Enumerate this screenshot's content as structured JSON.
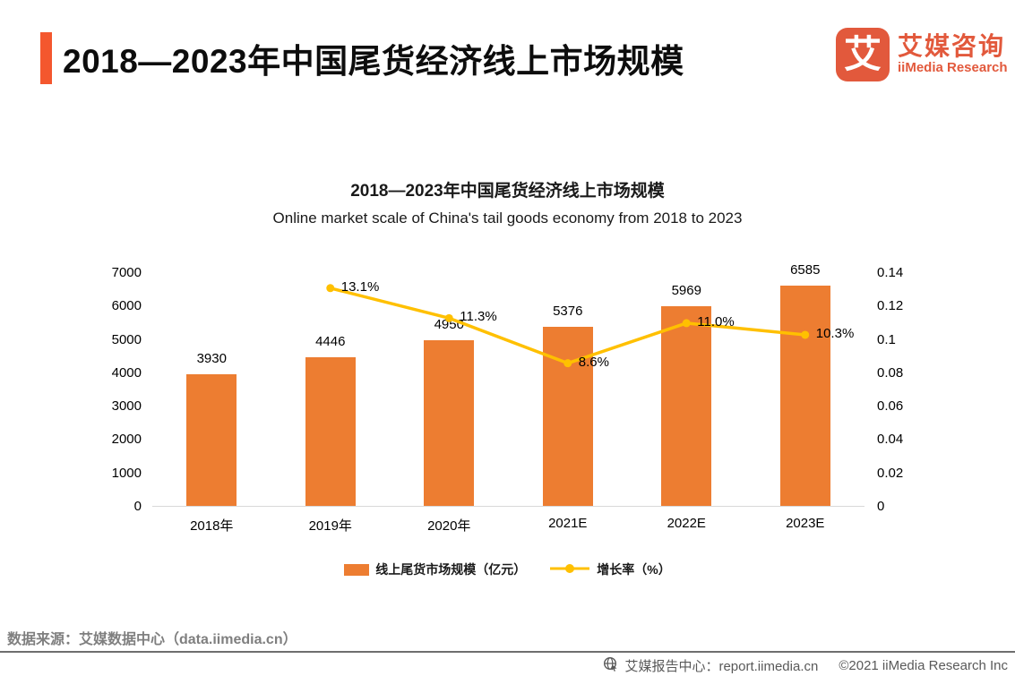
{
  "header": {
    "title": "2018—2023年中国尾货经济线上市场规模",
    "logo": {
      "mark": "艾",
      "name_cn": "艾媒咨询",
      "name_en": "iiMedia Research"
    }
  },
  "source_note": "数据来源：艾媒数据中心（data.iimedia.cn）",
  "footer": {
    "report_center": "艾媒报告中心：report.iimedia.cn",
    "copyright": "©2021  iiMedia Research Inc"
  },
  "colors": {
    "accent_bar": "#F4572E",
    "brand": "#E2593C",
    "bar": "#ED7D31",
    "line": "#FFC000",
    "source_text": "#7f7f7f",
    "footer_text": "#595959"
  },
  "chart_data": {
    "type": "bar",
    "title": "2018—2023年中国尾货经济线上市场规模",
    "subtitle": "Online market scale of China's tail goods economy from 2018 to 2023",
    "categories": [
      "2018年",
      "2019年",
      "2020年",
      "2021E",
      "2022E",
      "2023E"
    ],
    "series": [
      {
        "name": "线上尾货市场规模（亿元）",
        "type": "bar",
        "axis": "left",
        "color": "#ED7D31",
        "values": [
          3930,
          4446,
          4950,
          5376,
          5969,
          6585
        ],
        "labels": [
          "3930",
          "4446",
          "4950",
          "5376",
          "5969",
          "6585"
        ]
      },
      {
        "name": "增长率（%）",
        "type": "line",
        "axis": "right",
        "color": "#FFC000",
        "values": [
          null,
          0.131,
          0.113,
          0.086,
          0.11,
          0.103
        ],
        "labels": [
          null,
          "13.1%",
          "11.3%",
          "8.6%",
          "11.0%",
          "10.3%"
        ]
      }
    ],
    "left_axis": {
      "min": 0,
      "max": 7000,
      "step": 1000,
      "ticks": [
        "0",
        "1000",
        "2000",
        "3000",
        "4000",
        "5000",
        "6000",
        "7000"
      ]
    },
    "right_axis": {
      "min": 0,
      "max": 0.14,
      "step": 0.02,
      "ticks": [
        "0",
        "0.02",
        "0.04",
        "0.06",
        "0.08",
        "0.1",
        "0.12",
        "0.14"
      ]
    },
    "legend_position": "bottom",
    "grid": false
  }
}
